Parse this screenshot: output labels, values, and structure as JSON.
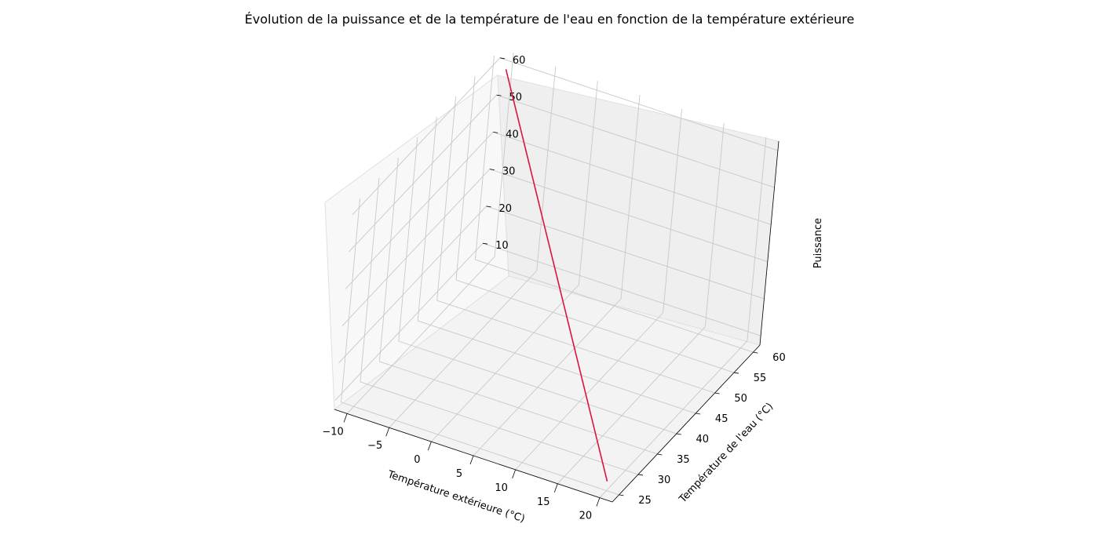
{
  "chart_data": {
    "type": "line",
    "projection": "3d",
    "title": "Évolution de la puissance et de la température de l'eau en fonction de la température extérieure",
    "xlabel": "Température extérieure (°C)",
    "ylabel": "Température de l'eau (°C)",
    "zlabel": "Puissance",
    "x_ticks": [
      "20",
      "15",
      "10",
      "5",
      "0",
      "−5",
      "−10"
    ],
    "y_ticks": [
      "25",
      "30",
      "35",
      "40",
      "45",
      "50",
      "55",
      "60"
    ],
    "z_ticks": [
      "10",
      "20",
      "30",
      "40",
      "50",
      "60"
    ],
    "grid": true,
    "series": [
      {
        "color": "#dc143c",
        "x": [
          20,
          -10
        ],
        "y": [
          25,
          60
        ],
        "z": [
          10,
          60
        ]
      }
    ]
  }
}
